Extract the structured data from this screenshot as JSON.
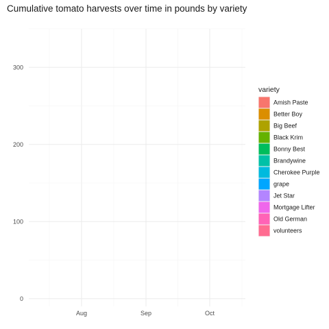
{
  "chart_data": {
    "type": "area",
    "title": "Cumulative tomato harvests over time in pounds by variety",
    "xlabel": "",
    "ylabel": "",
    "x_ticks": [
      "Aug",
      "Sep",
      "Oct"
    ],
    "y_ticks": [
      0,
      100,
      200,
      300
    ],
    "ylim": [
      -10,
      350
    ],
    "grid": true,
    "legend": {
      "title": "variety",
      "position": "right"
    },
    "series": [
      {
        "name": "Amish Paste",
        "color": "#F8766D",
        "values": []
      },
      {
        "name": "Better Boy",
        "color": "#DB8E00",
        "values": []
      },
      {
        "name": "Big Beef",
        "color": "#AEA200",
        "values": []
      },
      {
        "name": "Black Krim",
        "color": "#64B200",
        "values": []
      },
      {
        "name": "Bonny Best",
        "color": "#00BD5C",
        "values": []
      },
      {
        "name": "Brandywine",
        "color": "#00C1A7",
        "values": []
      },
      {
        "name": "Cherokee Purple",
        "color": "#00BADE",
        "values": []
      },
      {
        "name": "grape",
        "color": "#00A6FF",
        "values": []
      },
      {
        "name": "Jet Star",
        "color": "#B385FF",
        "values": []
      },
      {
        "name": "Mortgage Lifter",
        "color": "#EF67EB",
        "values": []
      },
      {
        "name": "Old German",
        "color": "#FF63B6",
        "values": []
      },
      {
        "name": "volunteers",
        "color": "#FF6C91",
        "values": []
      }
    ]
  }
}
